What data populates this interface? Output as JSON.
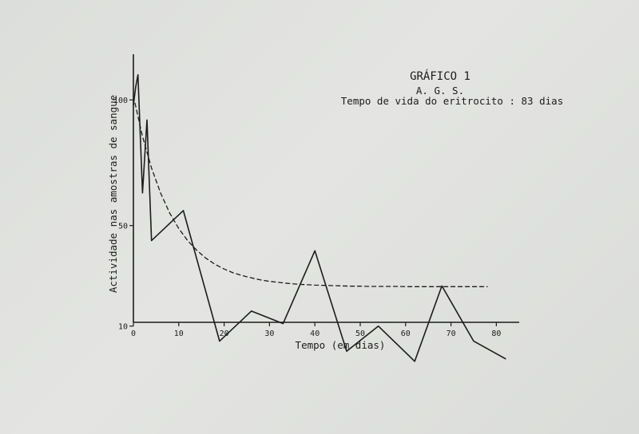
{
  "chart_data": {
    "type": "line",
    "title": "GRÁFICO 1",
    "subtitle": "A. G. S.",
    "subtitle2": "Tempo de vida do eritrocito : 83 dias",
    "xlabel": "Tempo  (em dias)",
    "ylabel": "Actividade nas amostras de sangue",
    "xlim": [
      0,
      85
    ],
    "ylim": [
      0,
      110
    ],
    "x_ticks": [
      0,
      10,
      20,
      30,
      40,
      50,
      60,
      70,
      80
    ],
    "x_tick_labels": [
      "0",
      "10",
      "20",
      "30",
      "40",
      "50",
      "60",
      "70",
      "80"
    ],
    "y_ticks": [
      10,
      50,
      100
    ],
    "y_tick_labels": [
      "10",
      "50",
      "100"
    ],
    "grid": false,
    "series": [
      {
        "style": "solid",
        "x": [
          0,
          0.5,
          1,
          2,
          3,
          4,
          11,
          19,
          26,
          33,
          40,
          47,
          54,
          62,
          68,
          75,
          82
        ],
        "y": [
          98,
          105,
          110,
          63,
          92,
          44,
          56,
          4,
          16,
          11,
          40,
          0,
          10,
          -4,
          26,
          4,
          -3
        ]
      },
      {
        "style": "dashed",
        "x": [
          0,
          2,
          4,
          6,
          8,
          10,
          12,
          14,
          16,
          18,
          20,
          22,
          24,
          26,
          28,
          30,
          32,
          34,
          36,
          38,
          40,
          42,
          44,
          46,
          48,
          50,
          52,
          54,
          56,
          58,
          60,
          62,
          64,
          66,
          68,
          70,
          72,
          74,
          76,
          78
        ],
        "y": [
          101.5,
          85.5,
          72.9,
          62.9,
          55.0,
          48.8,
          43.9,
          40.1,
          37.0,
          34.6,
          32.7,
          31.2,
          30.1,
          29.2,
          28.4,
          27.8,
          27.4,
          27.0,
          26.7,
          26.5,
          26.3,
          26.2,
          26.1,
          26.0,
          25.9,
          25.9,
          25.8,
          25.8,
          25.8,
          25.8,
          25.7,
          25.7,
          25.7,
          25.7,
          25.7,
          25.7,
          25.7,
          25.7,
          25.7,
          25.7
        ]
      }
    ]
  },
  "colors": {
    "ink": "#1c1c1c",
    "paper": "#e1e2df"
  }
}
